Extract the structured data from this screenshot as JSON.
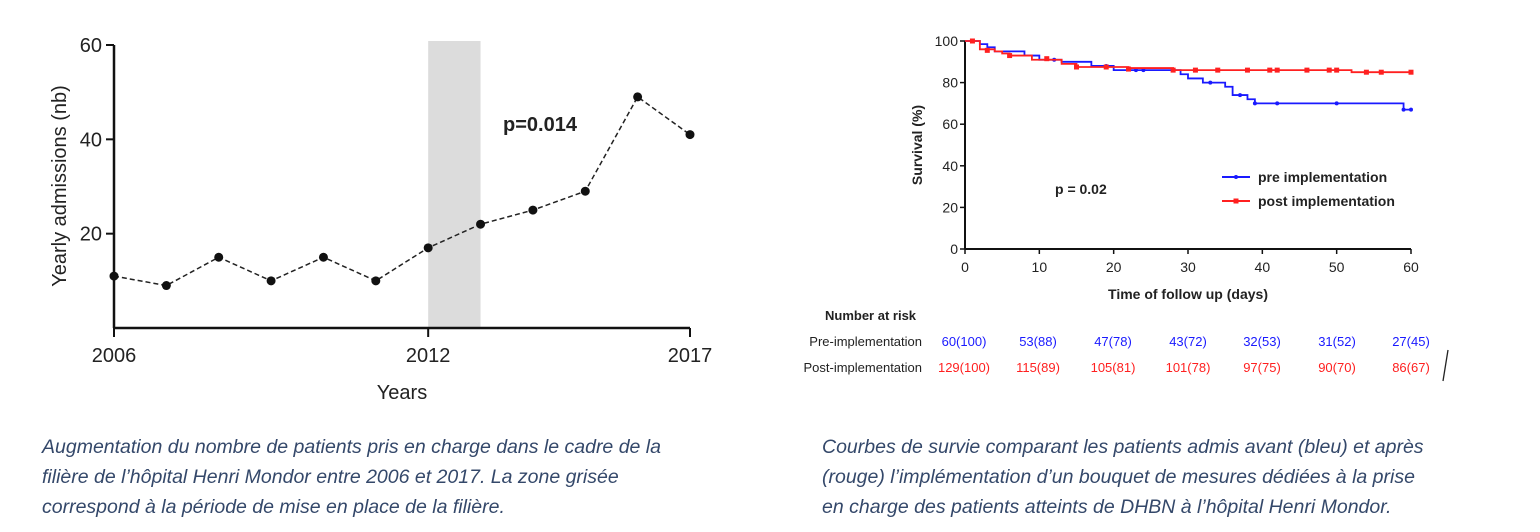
{
  "chart_data": [
    {
      "type": "line",
      "xlabel": "Years",
      "ylabel": "Yearly admissions (nb)",
      "x": [
        2006,
        2007,
        2008,
        2009,
        2010,
        2011,
        2012,
        2013,
        2014,
        2015,
        2016,
        2017
      ],
      "values": [
        11,
        9,
        15,
        10,
        15,
        10,
        17,
        22,
        25,
        29,
        49,
        41
      ],
      "xlim": [
        2006,
        2017
      ],
      "ylim": [
        0,
        60
      ],
      "x_ticks": [
        "2006",
        "2012",
        "2017"
      ],
      "y_ticks": [
        "20",
        "40",
        "60"
      ],
      "shaded_region": [
        2012,
        2013
      ],
      "annotation": "p=0.014",
      "line_style": "dashed",
      "grid": false,
      "colors": {
        "line": "#222222",
        "shade": "#dcdcdc"
      }
    },
    {
      "type": "line",
      "subtype": "kaplan-meier step",
      "xlabel": "Time of follow up (days)",
      "ylabel": "Survival (%)",
      "xlim": [
        0,
        60
      ],
      "ylim": [
        0,
        100
      ],
      "x_ticks": [
        "0",
        "10",
        "20",
        "30",
        "40",
        "50",
        "60"
      ],
      "y_ticks": [
        "0",
        "20",
        "40",
        "60",
        "80",
        "100"
      ],
      "annotation": "p = 0.02",
      "legend_position": "right",
      "grid": false,
      "series": [
        {
          "name": "pre implementation",
          "color": "#1a1aff",
          "steps": [
            [
              0,
              100
            ],
            [
              2,
              98.5
            ],
            [
              3,
              97
            ],
            [
              4,
              95
            ],
            [
              8,
              93
            ],
            [
              10,
              91
            ],
            [
              13,
              90
            ],
            [
              17,
              88
            ],
            [
              20,
              86
            ],
            [
              29,
              84
            ],
            [
              30,
              82
            ],
            [
              32,
              80
            ],
            [
              35,
              78
            ],
            [
              36,
              74
            ],
            [
              38,
              72
            ],
            [
              39,
              70
            ],
            [
              59,
              67
            ],
            [
              60,
              67
            ]
          ],
          "censored": [
            [
              12,
              91
            ],
            [
              19,
              88
            ],
            [
              23,
              86
            ],
            [
              24,
              86
            ],
            [
              33,
              80
            ],
            [
              37,
              74
            ],
            [
              39,
              70
            ],
            [
              42,
              70
            ],
            [
              50,
              70
            ],
            [
              59,
              67
            ],
            [
              60,
              67
            ]
          ]
        },
        {
          "name": "post implementation",
          "color": "#ff2020",
          "steps": [
            [
              0,
              100
            ],
            [
              2,
              96
            ],
            [
              4,
              95
            ],
            [
              5,
              94
            ],
            [
              6,
              93
            ],
            [
              9,
              91
            ],
            [
              13,
              89
            ],
            [
              15,
              87.5
            ],
            [
              22,
              87
            ],
            [
              28,
              86
            ],
            [
              52,
              85
            ],
            [
              60,
              85
            ]
          ],
          "censored": [
            [
              1,
              100
            ],
            [
              3,
              95.5
            ],
            [
              6,
              93
            ],
            [
              11,
              91.5
            ],
            [
              15,
              87.5
            ],
            [
              19,
              87.5
            ],
            [
              22,
              86.5
            ],
            [
              28,
              86
            ],
            [
              31,
              86
            ],
            [
              34,
              86
            ],
            [
              38,
              86
            ],
            [
              41,
              86
            ],
            [
              42,
              86
            ],
            [
              46,
              86
            ],
            [
              49,
              86
            ],
            [
              50,
              86
            ],
            [
              54,
              85
            ],
            [
              56,
              85
            ],
            [
              60,
              85
            ]
          ]
        }
      ]
    }
  ],
  "risk_table": {
    "title": "Number at risk",
    "rows": [
      {
        "label": "Pre-implementation",
        "color": "#1a1aff",
        "values": [
          "60(100)",
          "53(88)",
          "47(78)",
          "43(72)",
          "32(53)",
          "31(52)",
          "27(45)"
        ]
      },
      {
        "label": "Post-implementation",
        "color": "#ff2020",
        "values": [
          "129(100)",
          "115(89)",
          "105(81)",
          "101(78)",
          "97(75)",
          "90(70)",
          "86(67)"
        ]
      }
    ]
  },
  "captions": {
    "left": [
      "Augmentation du nombre de patients pris en charge dans le cadre de la",
      "filière de l’hôpital Henri Mondor entre 2006 et 2017. La zone grisée",
      "correspond à la période de mise en place de la filière."
    ],
    "right": [
      "Courbes de survie comparant les patients admis avant (bleu) et après",
      "(rouge) l’implémentation d’un bouquet de mesures dédiées à la prise",
      "en charge des patients atteints de DHBN à l’hôpital Henri Mondor."
    ]
  }
}
